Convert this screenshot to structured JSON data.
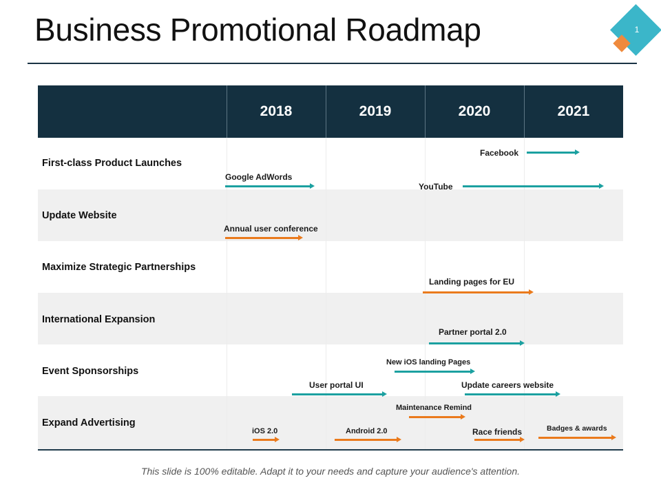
{
  "slide": {
    "title": "Business Promotional Roadmap",
    "page_number": "1",
    "footer": "This slide is 100% editable.  Adapt it to your needs and capture your audience's attention."
  },
  "columns": [
    "2018",
    "2019",
    "2020",
    "2021"
  ],
  "rows": [
    "First-class Product Launches",
    "Update Website",
    "Maximize Strategic Partnerships",
    "International Expansion",
    "Event Sponsorships",
    "Expand Advertising"
  ],
  "milestones": [
    {
      "label": "Facebook",
      "color": "teal"
    },
    {
      "label": "Google AdWords",
      "color": "teal"
    },
    {
      "label": "YouTube",
      "color": "teal"
    },
    {
      "label": "Annual user conference",
      "color": "orange"
    },
    {
      "label": "Landing pages for EU",
      "color": "orange"
    },
    {
      "label": "Partner portal 2.0",
      "color": "teal"
    },
    {
      "label": "New iOS landing Pages",
      "color": "teal"
    },
    {
      "label": "User portal UI",
      "color": "teal"
    },
    {
      "label": "Update careers website",
      "color": "teal"
    },
    {
      "label": "Maintenance Remind",
      "color": "orange"
    },
    {
      "label": "iOS 2.0",
      "color": "orange"
    },
    {
      "label": "Android 2.0",
      "color": "orange"
    },
    {
      "label": "Race friends",
      "color": "orange"
    },
    {
      "label": "Badges & awards",
      "color": "orange"
    }
  ],
  "colors": {
    "header_bg": "#143040",
    "teal": "#1ba0a0",
    "orange": "#ea7a1c",
    "accent_diamond": "#3bb6c9",
    "accent_small_diamond": "#ef8a3d"
  }
}
